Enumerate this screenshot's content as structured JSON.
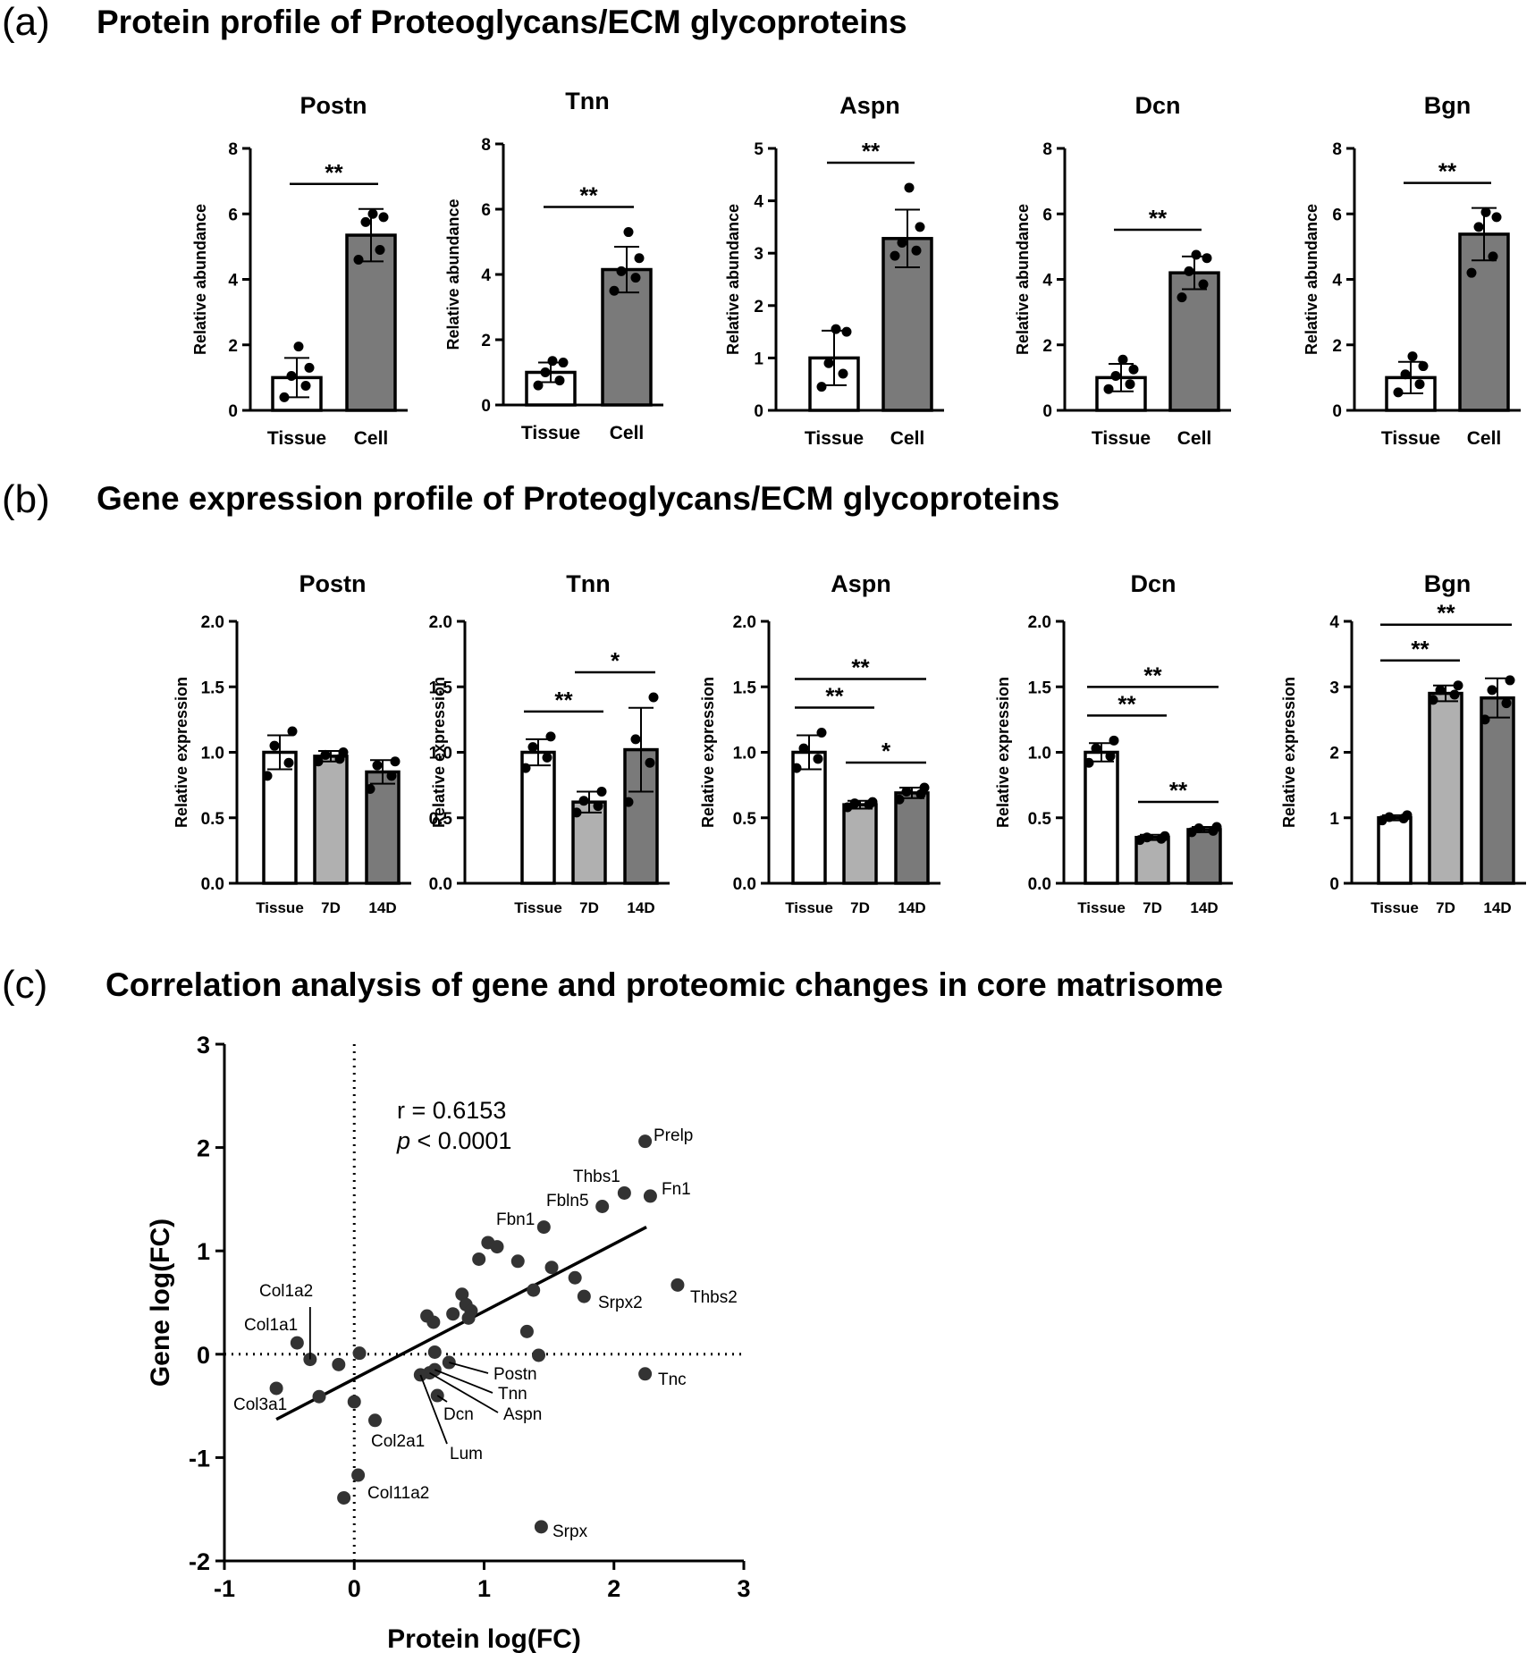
{
  "panels": {
    "a": {
      "letter": "(a)",
      "title": "Protein profile of Proteoglycans/ECM glycoproteins"
    },
    "b": {
      "letter": "(b)",
      "title": "Gene expression profile of Proteoglycans/ECM glycoproteins"
    },
    "c": {
      "letter": "(c)",
      "title": "Correlation analysis of gene and proteomic changes in core matrisome"
    }
  },
  "chart_data": [
    {
      "panel": "a",
      "type": "bar",
      "title": "Postn",
      "ylabel": "Relative abundance",
      "categories": [
        "Tissue",
        "Cell"
      ],
      "values": [
        1.0,
        5.35
      ],
      "errors": [
        0.6,
        0.8
      ],
      "ylim": [
        0,
        8
      ],
      "yticks": [
        "0",
        "2",
        "4",
        "6",
        "8"
      ],
      "points": [
        [
          0.4,
          0.75,
          1.05,
          1.3,
          1.95
        ],
        [
          4.6,
          4.9,
          5.75,
          5.9,
          6.0
        ]
      ],
      "colors": [
        "#ffffff",
        "#7a7a7a"
      ],
      "sig": [
        {
          "from": 0,
          "to": 1,
          "label": "**"
        }
      ]
    },
    {
      "panel": "a",
      "type": "bar",
      "title": "Tnn",
      "ylabel": "Relative abundance",
      "categories": [
        "Tissue",
        "Cell"
      ],
      "values": [
        1.0,
        4.15
      ],
      "errors": [
        0.3,
        0.7
      ],
      "ylim": [
        0,
        8
      ],
      "yticks": [
        "0",
        "2",
        "4",
        "6",
        "8"
      ],
      "points": [
        [
          0.6,
          0.75,
          1.0,
          1.3,
          1.35
        ],
        [
          3.5,
          3.9,
          4.1,
          4.5,
          5.3
        ]
      ],
      "colors": [
        "#ffffff",
        "#7a7a7a"
      ],
      "sig": [
        {
          "from": 0,
          "to": 1,
          "label": "**"
        }
      ]
    },
    {
      "panel": "a",
      "type": "bar",
      "title": "Aspn",
      "ylabel": "Relative abundance",
      "categories": [
        "Tissue",
        "Cell"
      ],
      "values": [
        1.0,
        3.28
      ],
      "errors": [
        0.52,
        0.55
      ],
      "ylim": [
        0,
        5
      ],
      "yticks": [
        "0",
        "1",
        "2",
        "3",
        "4",
        "5"
      ],
      "points": [
        [
          0.45,
          0.7,
          0.9,
          1.5,
          1.55
        ],
        [
          2.95,
          3.05,
          3.2,
          3.5,
          4.25
        ]
      ],
      "colors": [
        "#ffffff",
        "#7a7a7a"
      ],
      "sig": [
        {
          "from": 0,
          "to": 1,
          "label": "**"
        }
      ]
    },
    {
      "panel": "a",
      "type": "bar",
      "title": "Dcn",
      "ylabel": "Relative abundance",
      "categories": [
        "Tissue",
        "Cell"
      ],
      "values": [
        1.0,
        4.2
      ],
      "errors": [
        0.42,
        0.5
      ],
      "ylim": [
        0,
        8
      ],
      "yticks": [
        "0",
        "2",
        "4",
        "6",
        "8"
      ],
      "points": [
        [
          0.65,
          0.8,
          1.05,
          1.25,
          1.55
        ],
        [
          3.45,
          3.85,
          4.25,
          4.65,
          4.75
        ]
      ],
      "colors": [
        "#ffffff",
        "#7a7a7a"
      ],
      "sig": [
        {
          "from": 0,
          "to": 1,
          "label": "**"
        }
      ]
    },
    {
      "panel": "a",
      "type": "bar",
      "title": "Bgn",
      "ylabel": "Relative abundance",
      "categories": [
        "Tissue",
        "Cell"
      ],
      "values": [
        1.0,
        5.38
      ],
      "errors": [
        0.48,
        0.8
      ],
      "ylim": [
        0,
        8
      ],
      "yticks": [
        "0",
        "2",
        "4",
        "6",
        "8"
      ],
      "points": [
        [
          0.55,
          0.8,
          1.1,
          1.35,
          1.65
        ],
        [
          4.2,
          4.7,
          5.6,
          5.9,
          6.05
        ]
      ],
      "colors": [
        "#ffffff",
        "#7a7a7a"
      ],
      "sig": [
        {
          "from": 0,
          "to": 1,
          "label": "**"
        }
      ]
    },
    {
      "panel": "b",
      "type": "bar",
      "title": "Postn",
      "ylabel": "Relative  expression",
      "categories": [
        "Tissue",
        "7D",
        "14D"
      ],
      "values": [
        1.0,
        0.97,
        0.85
      ],
      "errors": [
        0.13,
        0.04,
        0.09
      ],
      "ylim": [
        0,
        2
      ],
      "yticks": [
        "0.0",
        "0.5",
        "1.0",
        "1.5",
        "2.0"
      ],
      "points": [
        [
          0.82,
          0.92,
          1.05,
          1.16
        ],
        [
          0.93,
          0.95,
          0.98,
          1.0
        ],
        [
          0.72,
          0.82,
          0.9,
          0.93
        ]
      ],
      "colors": [
        "#ffffff",
        "#b0b0b0",
        "#7a7a7a"
      ],
      "sig": []
    },
    {
      "panel": "b",
      "type": "bar",
      "title": "Tnn",
      "ylabel": "Relative  expression",
      "categories": [
        "Tissue",
        "7D",
        "14D"
      ],
      "values": [
        1.0,
        0.62,
        1.02
      ],
      "errors": [
        0.1,
        0.08,
        0.32
      ],
      "ylim": [
        0,
        2
      ],
      "yticks": [
        "0.0",
        "0.5",
        "1.0",
        "1.5",
        "2.0"
      ],
      "points": [
        [
          0.88,
          0.96,
          1.04,
          1.12
        ],
        [
          0.54,
          0.59,
          0.63,
          0.7
        ],
        [
          0.62,
          0.92,
          1.1,
          1.42
        ]
      ],
      "colors": [
        "#ffffff",
        "#b0b0b0",
        "#7a7a7a"
      ],
      "sig": [
        {
          "from": 0,
          "to": 1,
          "label": "**"
        },
        {
          "from": 1,
          "to": 2,
          "label": "*"
        }
      ]
    },
    {
      "panel": "b",
      "type": "bar",
      "title": "Aspn",
      "ylabel": "Relative  expression",
      "categories": [
        "Tissue",
        "7D",
        "14D"
      ],
      "values": [
        1.0,
        0.6,
        0.69
      ],
      "errors": [
        0.13,
        0.03,
        0.04
      ],
      "ylim": [
        0,
        2
      ],
      "yticks": [
        "0.0",
        "0.5",
        "1.0",
        "1.5",
        "2.0"
      ],
      "points": [
        [
          0.88,
          0.95,
          1.03,
          1.15
        ],
        [
          0.58,
          0.6,
          0.61,
          0.62
        ],
        [
          0.64,
          0.68,
          0.7,
          0.73
        ]
      ],
      "colors": [
        "#ffffff",
        "#b0b0b0",
        "#7a7a7a"
      ],
      "sig": [
        {
          "from": 0,
          "to": 1,
          "label": "**"
        },
        {
          "from": 1,
          "to": 2,
          "label": "*"
        },
        {
          "from": 0,
          "to": 2,
          "label": "**"
        }
      ]
    },
    {
      "panel": "b",
      "type": "bar",
      "title": "Dcn",
      "ylabel": "Relative  expression",
      "categories": [
        "Tissue",
        "7D",
        "14D"
      ],
      "values": [
        1.0,
        0.35,
        0.41
      ],
      "errors": [
        0.07,
        0.02,
        0.02
      ],
      "ylim": [
        0,
        2
      ],
      "yticks": [
        "0.0",
        "0.5",
        "1.0",
        "1.5",
        "2.0"
      ],
      "points": [
        [
          0.92,
          0.97,
          1.03,
          1.09
        ],
        [
          0.33,
          0.34,
          0.35,
          0.36
        ],
        [
          0.39,
          0.4,
          0.42,
          0.43
        ]
      ],
      "colors": [
        "#ffffff",
        "#b0b0b0",
        "#7a7a7a"
      ],
      "sig": [
        {
          "from": 0,
          "to": 1,
          "label": "**"
        },
        {
          "from": 1,
          "to": 2,
          "label": "**"
        },
        {
          "from": 0,
          "to": 2,
          "label": "**"
        }
      ]
    },
    {
      "panel": "b",
      "type": "bar",
      "title": "Bgn",
      "ylabel": "Relative  expression",
      "categories": [
        "Tissue",
        "7D",
        "14D"
      ],
      "values": [
        1.0,
        2.9,
        2.83
      ],
      "errors": [
        0.04,
        0.12,
        0.3
      ],
      "ylim": [
        0,
        4
      ],
      "yticks": [
        "0",
        "1",
        "2",
        "3",
        "4"
      ],
      "points": [
        [
          0.96,
          0.99,
          1.01,
          1.04
        ],
        [
          2.8,
          2.88,
          2.95,
          3.02
        ],
        [
          2.5,
          2.75,
          2.95,
          3.1
        ]
      ],
      "colors": [
        "#ffffff",
        "#b0b0b0",
        "#7a7a7a"
      ],
      "sig": [
        {
          "from": 0,
          "to": 1,
          "label": "**"
        },
        {
          "from": 0,
          "to": 2,
          "label": "**"
        }
      ]
    },
    {
      "panel": "c",
      "type": "scatter",
      "xlabel": "Protein log(FC)",
      "ylabel": "Gene log(FC)",
      "xlim": [
        -1,
        3
      ],
      "ylim": [
        -2,
        3
      ],
      "xticks": [
        "-1",
        "0",
        "1",
        "2",
        "3"
      ],
      "yticks": [
        "-2",
        "-1",
        "0",
        "1",
        "2",
        "3"
      ],
      "r_text": "r = 0.6153",
      "p_label": "p",
      "p_text": " < 0.0001",
      "fit": {
        "x": [
          -0.6,
          2.25
        ],
        "y": [
          -0.63,
          1.23
        ]
      },
      "points": [
        [
          2.24,
          2.06
        ],
        [
          2.08,
          1.56
        ],
        [
          2.28,
          1.53
        ],
        [
          1.91,
          1.43
        ],
        [
          1.46,
          1.23
        ],
        [
          1.03,
          1.08
        ],
        [
          1.1,
          1.04
        ],
        [
          0.96,
          0.92
        ],
        [
          1.26,
          0.9
        ],
        [
          1.52,
          0.84
        ],
        [
          1.7,
          0.74
        ],
        [
          1.38,
          0.62
        ],
        [
          1.77,
          0.56
        ],
        [
          2.49,
          0.67
        ],
        [
          0.83,
          0.58
        ],
        [
          0.86,
          0.48
        ],
        [
          0.9,
          0.42
        ],
        [
          0.76,
          0.39
        ],
        [
          0.88,
          0.35
        ],
        [
          0.56,
          0.37
        ],
        [
          0.61,
          0.31
        ],
        [
          1.33,
          0.22
        ],
        [
          1.42,
          -0.01
        ],
        [
          0.62,
          0.02
        ],
        [
          0.04,
          0.01
        ],
        [
          -0.44,
          0.11
        ],
        [
          -0.34,
          -0.05
        ],
        [
          -0.12,
          -0.1
        ],
        [
          -0.6,
          -0.33
        ],
        [
          -0.27,
          -0.41
        ],
        [
          0.73,
          -0.08
        ],
        [
          0.62,
          -0.15
        ],
        [
          0.58,
          -0.18
        ],
        [
          0.51,
          -0.2
        ],
        [
          0.64,
          -0.4
        ],
        [
          2.24,
          -0.19
        ],
        [
          0.0,
          -0.46
        ],
        [
          0.16,
          -0.64
        ],
        [
          0.03,
          -1.17
        ],
        [
          -0.08,
          -1.39
        ],
        [
          1.44,
          -1.67
        ]
      ],
      "labels": [
        {
          "text": "Prelp"
        },
        {
          "text": "Thbs1"
        },
        {
          "text": "Fn1"
        },
        {
          "text": "Fbln5"
        },
        {
          "text": "Fbn1"
        },
        {
          "text": "Srpx2"
        },
        {
          "text": "Thbs2"
        },
        {
          "text": "Col1a2"
        },
        {
          "text": "Col1a1"
        },
        {
          "text": "Col3a1"
        },
        {
          "text": "Postn"
        },
        {
          "text": "Tnn"
        },
        {
          "text": "Aspn"
        },
        {
          "text": "Dcn"
        },
        {
          "text": "Lum"
        },
        {
          "text": "Col2a1"
        },
        {
          "text": "Tnc"
        },
        {
          "text": "Col11a2"
        },
        {
          "text": "Srpx"
        }
      ]
    }
  ]
}
